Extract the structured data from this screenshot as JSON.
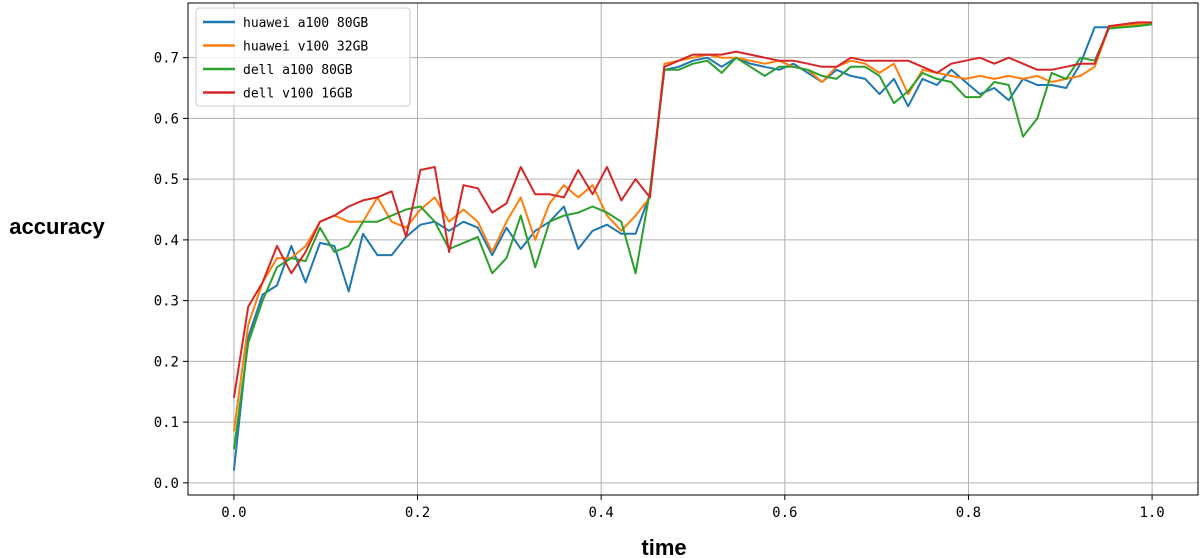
{
  "chart_data": {
    "type": "line",
    "title": "",
    "xlabel": "time",
    "ylabel": "accuracy",
    "xlim": [
      -0.05,
      1.05
    ],
    "ylim": [
      -0.02,
      0.79
    ],
    "xticks": [
      0.0,
      0.2,
      0.4,
      0.6,
      0.8,
      1.0
    ],
    "xtick_labels": [
      "0.0",
      "0.2",
      "0.4",
      "0.6",
      "0.8",
      "1.0"
    ],
    "yticks": [
      0.0,
      0.1,
      0.2,
      0.3,
      0.4,
      0.5,
      0.6,
      0.7
    ],
    "ytick_labels": [
      "0.0",
      "0.1",
      "0.2",
      "0.3",
      "0.4",
      "0.5",
      "0.6",
      "0.7"
    ],
    "grid": true,
    "legend": "top-left",
    "x": [
      0.0,
      0.0156,
      0.0313,
      0.0469,
      0.0625,
      0.0781,
      0.0938,
      0.1094,
      0.125,
      0.1406,
      0.1563,
      0.1719,
      0.1875,
      0.2031,
      0.2188,
      0.2344,
      0.25,
      0.2656,
      0.2813,
      0.2969,
      0.3125,
      0.3281,
      0.3438,
      0.3594,
      0.375,
      0.3906,
      0.4063,
      0.4219,
      0.4375,
      0.4531,
      0.4688,
      0.4844,
      0.5,
      0.5156,
      0.5313,
      0.5469,
      0.5625,
      0.5781,
      0.5938,
      0.6094,
      0.625,
      0.6406,
      0.6563,
      0.6719,
      0.6875,
      0.7031,
      0.7188,
      0.7344,
      0.75,
      0.7656,
      0.7813,
      0.7969,
      0.8125,
      0.8281,
      0.8438,
      0.8594,
      0.875,
      0.8906,
      0.9063,
      0.9219,
      0.9375,
      0.9531,
      0.9688,
      0.9844,
      1.0
    ],
    "series": [
      {
        "name": "huawei a100 80GB",
        "color": "#1f77b4",
        "values": [
          0.02,
          0.24,
          0.31,
          0.325,
          0.39,
          0.33,
          0.395,
          0.39,
          0.315,
          0.41,
          0.375,
          0.375,
          0.405,
          0.425,
          0.43,
          0.415,
          0.43,
          0.42,
          0.375,
          0.42,
          0.385,
          0.415,
          0.43,
          0.455,
          0.385,
          0.415,
          0.425,
          0.41,
          0.41,
          0.475,
          0.68,
          0.685,
          0.695,
          0.7,
          0.685,
          0.7,
          0.69,
          0.685,
          0.68,
          0.69,
          0.675,
          0.66,
          0.68,
          0.67,
          0.665,
          0.64,
          0.665,
          0.62,
          0.665,
          0.655,
          0.68,
          0.66,
          0.64,
          0.65,
          0.63,
          0.665,
          0.655,
          0.655,
          0.65,
          0.69,
          0.75,
          0.75,
          0.752,
          0.755,
          0.755
        ]
      },
      {
        "name": "huawei v100 32GB",
        "color": "#ff7f0e",
        "values": [
          0.085,
          0.26,
          0.33,
          0.37,
          0.37,
          0.39,
          0.43,
          0.44,
          0.43,
          0.43,
          0.47,
          0.43,
          0.42,
          0.45,
          0.47,
          0.43,
          0.45,
          0.43,
          0.38,
          0.43,
          0.47,
          0.4,
          0.46,
          0.49,
          0.47,
          0.49,
          0.44,
          0.415,
          0.44,
          0.47,
          0.69,
          0.695,
          0.7,
          0.705,
          0.7,
          0.7,
          0.695,
          0.69,
          0.695,
          0.685,
          0.68,
          0.66,
          0.685,
          0.695,
          0.69,
          0.675,
          0.69,
          0.64,
          0.68,
          0.675,
          0.67,
          0.665,
          0.67,
          0.665,
          0.67,
          0.665,
          0.67,
          0.66,
          0.665,
          0.67,
          0.685,
          0.75,
          0.752,
          0.755,
          0.755
        ]
      },
      {
        "name": "dell a100 80GB",
        "color": "#2ca02c",
        "values": [
          0.055,
          0.23,
          0.3,
          0.355,
          0.37,
          0.365,
          0.42,
          0.38,
          0.39,
          0.43,
          0.43,
          0.44,
          0.45,
          0.455,
          0.43,
          0.385,
          0.395,
          0.405,
          0.345,
          0.37,
          0.44,
          0.355,
          0.43,
          0.44,
          0.445,
          0.455,
          0.445,
          0.43,
          0.345,
          0.48,
          0.68,
          0.68,
          0.69,
          0.695,
          0.675,
          0.7,
          0.685,
          0.67,
          0.685,
          0.685,
          0.68,
          0.67,
          0.665,
          0.685,
          0.685,
          0.67,
          0.625,
          0.645,
          0.675,
          0.665,
          0.66,
          0.635,
          0.635,
          0.66,
          0.655,
          0.57,
          0.6,
          0.675,
          0.665,
          0.7,
          0.695,
          0.748,
          0.75,
          0.752,
          0.755
        ]
      },
      {
        "name": "dell v100 16GB",
        "color": "#d62728",
        "values": [
          0.14,
          0.29,
          0.33,
          0.39,
          0.345,
          0.38,
          0.43,
          0.44,
          0.455,
          0.465,
          0.47,
          0.48,
          0.405,
          0.515,
          0.52,
          0.38,
          0.49,
          0.485,
          0.445,
          0.46,
          0.52,
          0.475,
          0.475,
          0.47,
          0.515,
          0.475,
          0.52,
          0.465,
          0.5,
          0.47,
          0.685,
          0.695,
          0.705,
          0.705,
          0.705,
          0.71,
          0.705,
          0.7,
          0.695,
          0.695,
          0.69,
          0.685,
          0.685,
          0.7,
          0.695,
          0.695,
          0.695,
          0.695,
          0.685,
          0.675,
          0.69,
          0.695,
          0.7,
          0.69,
          0.7,
          0.69,
          0.68,
          0.68,
          0.685,
          0.69,
          0.69,
          0.752,
          0.755,
          0.758,
          0.758
        ]
      }
    ]
  }
}
